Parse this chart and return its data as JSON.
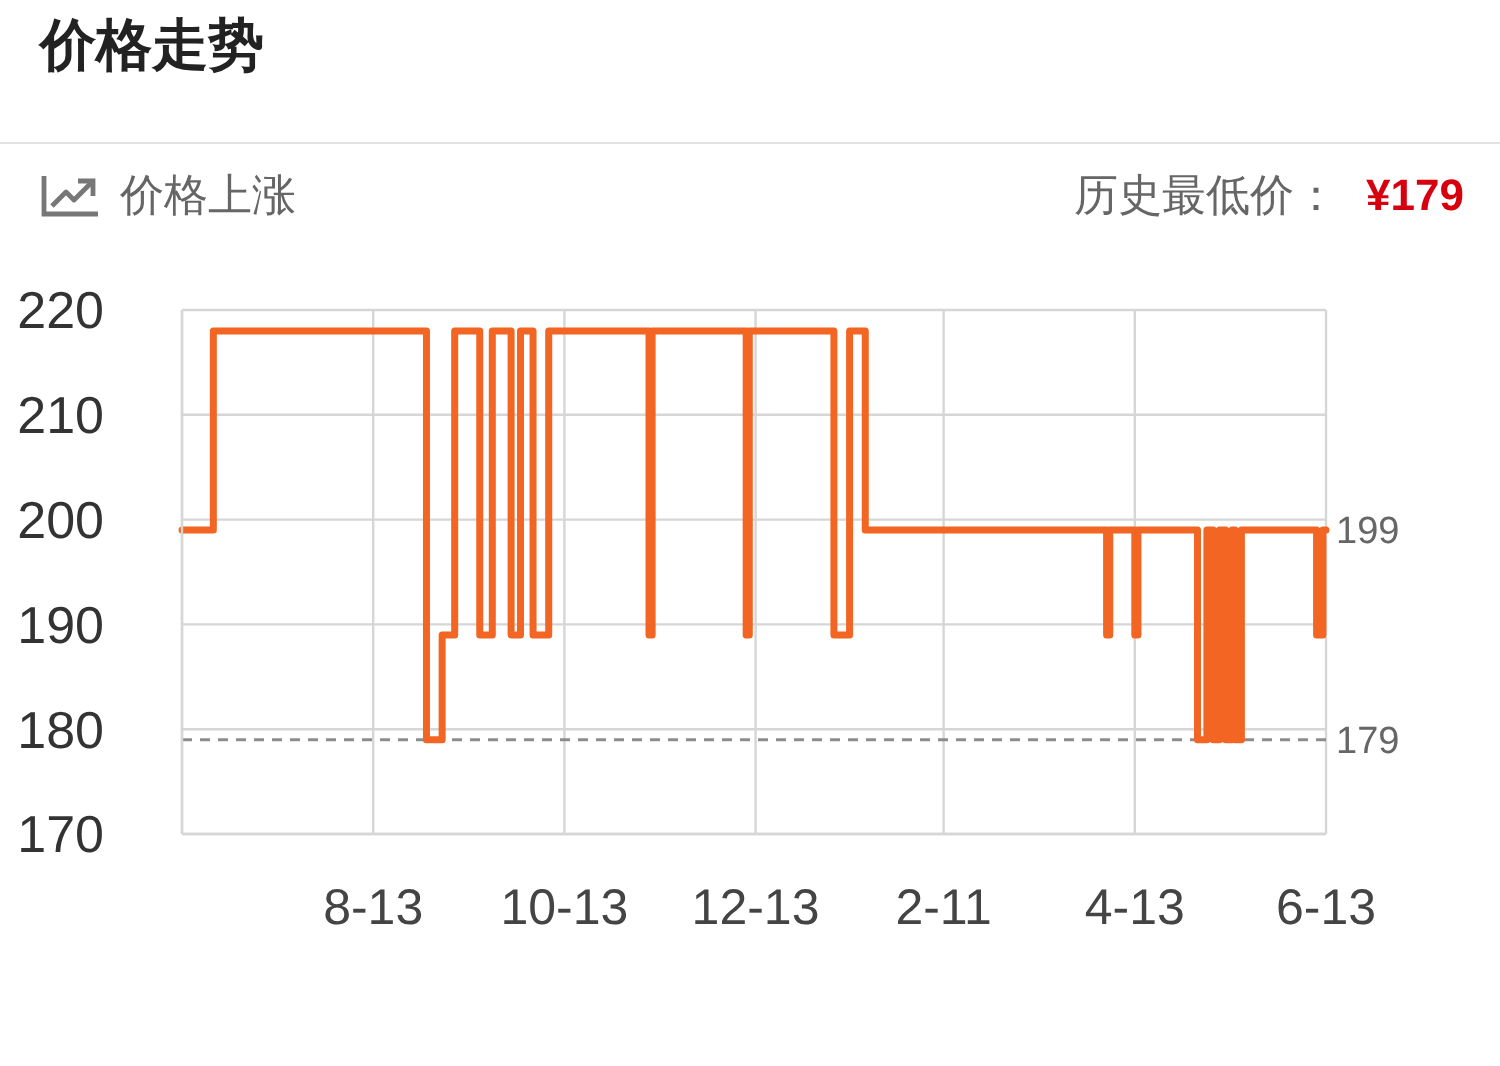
{
  "chart_data": {
    "type": "step",
    "title": "价格走势",
    "subtitle": "价格上涨",
    "annotations": [
      "历史最低价：",
      "¥179"
    ],
    "categories": [
      null,
      null,
      null,
      null,
      null,
      null,
      null,
      null,
      null,
      null,
      null,
      null,
      null,
      null,
      null,
      null,
      null,
      null,
      null,
      null,
      null,
      null,
      null,
      null,
      null,
      null,
      null,
      null,
      null,
      null,
      null,
      null,
      null,
      null,
      null,
      null,
      null,
      null,
      null,
      null,
      null,
      null,
      null,
      null,
      null,
      null,
      null,
      null,
      null,
      null,
      null,
      null,
      null,
      null,
      null,
      null,
      null,
      null,
      null,
      null,
      null,
      "8-13",
      null,
      null,
      null,
      null,
      null,
      null,
      null,
      null,
      null,
      null,
      null,
      null,
      null,
      null,
      null,
      null,
      null,
      null,
      null,
      null,
      null,
      null,
      null,
      null,
      null,
      null,
      null,
      null,
      null,
      null,
      null,
      null,
      null,
      null,
      null,
      null,
      null,
      null,
      null,
      null,
      null,
      null,
      null,
      null,
      null,
      null,
      null,
      null,
      null,
      null,
      null,
      null,
      null,
      null,
      null,
      null,
      null,
      null,
      null,
      null,
      "10-13",
      null,
      null,
      null,
      null,
      null,
      null,
      null,
      null,
      null,
      null,
      null,
      null,
      null,
      null,
      null,
      null,
      null,
      null,
      null,
      null,
      null,
      null,
      null,
      null,
      null,
      null,
      null,
      null,
      null,
      null,
      null,
      null,
      null,
      null,
      null,
      null,
      null,
      null,
      null,
      null,
      null,
      null,
      null,
      null,
      null,
      null,
      null,
      null,
      null,
      null,
      null,
      null,
      null,
      null,
      null,
      null,
      null,
      null,
      null,
      null,
      "12-13",
      null,
      null,
      null,
      null,
      null,
      null,
      null,
      null,
      null,
      null,
      null,
      null,
      null,
      null,
      null,
      null,
      null,
      null,
      null,
      null,
      null,
      null,
      null,
      null,
      null,
      null,
      null,
      null,
      null,
      null,
      null,
      null,
      null,
      null,
      null,
      null,
      null,
      null,
      null,
      null,
      null,
      null,
      null,
      null,
      null,
      null,
      null,
      null,
      null,
      null,
      null,
      null,
      null,
      null,
      null,
      null,
      null,
      null,
      null,
      "2-11",
      null,
      null,
      null,
      null,
      null,
      null,
      null,
      null,
      null,
      null,
      null,
      null,
      null,
      null,
      null,
      null,
      null,
      null,
      null,
      null,
      null,
      null,
      null,
      null,
      null,
      null,
      null,
      null,
      null,
      null,
      null,
      null,
      null,
      null,
      null,
      null,
      null,
      null,
      null,
      null,
      null,
      null,
      null,
      null,
      null,
      null,
      null,
      null,
      null,
      null,
      null,
      null,
      null,
      null,
      null,
      null,
      null,
      null,
      null,
      null,
      "4-13",
      null,
      null,
      null,
      null,
      null,
      null,
      null,
      null,
      null,
      null,
      null,
      null,
      null,
      null,
      null,
      null,
      null,
      null,
      null,
      null,
      null,
      null,
      null,
      null,
      null,
      null,
      null,
      null,
      null,
      null,
      null,
      null,
      null,
      null,
      null,
      null,
      null,
      null,
      null,
      null,
      null,
      null,
      null,
      null,
      null,
      null,
      null,
      null,
      null,
      null,
      null,
      null,
      null,
      null,
      null,
      null,
      null,
      null,
      null,
      null,
      "6-13"
    ],
    "values": [
      199,
      199,
      199,
      199,
      199,
      199,
      199,
      199,
      199,
      199,
      218,
      218,
      218,
      218,
      218,
      218,
      218,
      218,
      218,
      218,
      218,
      218,
      218,
      218,
      218,
      218,
      218,
      218,
      218,
      218,
      218,
      218,
      218,
      218,
      218,
      218,
      218,
      218,
      218,
      218,
      218,
      218,
      218,
      218,
      218,
      218,
      218,
      218,
      218,
      218,
      218,
      218,
      218,
      218,
      218,
      218,
      218,
      218,
      218,
      218,
      218,
      218,
      218,
      218,
      218,
      218,
      218,
      218,
      218,
      218,
      218,
      218,
      218,
      218,
      218,
      218,
      218,
      218,
      179,
      179,
      179,
      179,
      179,
      189,
      189,
      189,
      189,
      218,
      218,
      218,
      218,
      218,
      218,
      218,
      218,
      189,
      189,
      189,
      189,
      218,
      218,
      218,
      218,
      218,
      218,
      189,
      189,
      189,
      218,
      218,
      218,
      218,
      189,
      189,
      189,
      189,
      189,
      218,
      218,
      218,
      218,
      218,
      218,
      218,
      218,
      218,
      218,
      218,
      218,
      218,
      218,
      218,
      218,
      218,
      218,
      218,
      218,
      218,
      218,
      218,
      218,
      218,
      218,
      218,
      218,
      218,
      218,
      218,
      218,
      189,
      218,
      218,
      218,
      218,
      218,
      218,
      218,
      218,
      218,
      218,
      218,
      218,
      218,
      218,
      218,
      218,
      218,
      218,
      218,
      218,
      218,
      218,
      218,
      218,
      218,
      218,
      218,
      218,
      218,
      218,
      189,
      218,
      218,
      218,
      218,
      218,
      218,
      218,
      218,
      218,
      218,
      218,
      218,
      218,
      218,
      218,
      218,
      218,
      218,
      218,
      218,
      218,
      218,
      218,
      218,
      218,
      218,
      218,
      189,
      189,
      189,
      189,
      189,
      218,
      218,
      218,
      218,
      218,
      199,
      199,
      199,
      199,
      199,
      199,
      199,
      199,
      199,
      199,
      199,
      199,
      199,
      199,
      199,
      199,
      199,
      199,
      199,
      199,
      199,
      199,
      199,
      199,
      199,
      199,
      199,
      199,
      199,
      199,
      199,
      199,
      199,
      199,
      199,
      199,
      199,
      199,
      199,
      199,
      199,
      199,
      199,
      199,
      199,
      199,
      199,
      199,
      199,
      199,
      199,
      199,
      199,
      199,
      199,
      199,
      199,
      199,
      199,
      199,
      199,
      199,
      199,
      199,
      199,
      199,
      199,
      199,
      199,
      199,
      199,
      199,
      199,
      199,
      199,
      199,
      199,
      189,
      199,
      199,
      199,
      199,
      199,
      199,
      199,
      199,
      189,
      199,
      199,
      199,
      199,
      199,
      199,
      199,
      199,
      199,
      199,
      199,
      199,
      199,
      199,
      199,
      199,
      199,
      199,
      199,
      179,
      179,
      179,
      199,
      199,
      179,
      179,
      199,
      199,
      179,
      179,
      199,
      179,
      179,
      199,
      199,
      199,
      199,
      199,
      199,
      199,
      199,
      199,
      199,
      199,
      199,
      199,
      199,
      199,
      199,
      199,
      199,
      199,
      199,
      199,
      199,
      199,
      199,
      189,
      189,
      199,
      199
    ],
    "value_labels": [
      null,
      null,
      null,
      null,
      null,
      null,
      null,
      null,
      null,
      null,
      null,
      null,
      null,
      null,
      null,
      null,
      null,
      null,
      null,
      null,
      null,
      null,
      null,
      null,
      null,
      null,
      null,
      null,
      null,
      null,
      null,
      null,
      null,
      null,
      null,
      null,
      null,
      null,
      null,
      null,
      null,
      null,
      null,
      null,
      null,
      null,
      null,
      null,
      null,
      null,
      null,
      null,
      null,
      null,
      null,
      null,
      null,
      null,
      null,
      null,
      null,
      null,
      null,
      null,
      null,
      null,
      null,
      null,
      null,
      null,
      null,
      null,
      null,
      null,
      null,
      null,
      null,
      null,
      null,
      null,
      null,
      null,
      null,
      null,
      null,
      null,
      null,
      null,
      null,
      null,
      null,
      null,
      null,
      null,
      null,
      null,
      null,
      null,
      null,
      null,
      null,
      null,
      null,
      null,
      null,
      null,
      null,
      null,
      null,
      null,
      null,
      null,
      null,
      null,
      null,
      null,
      null,
      null,
      null,
      null,
      null,
      null,
      null,
      null,
      null,
      null,
      null,
      null,
      null,
      null,
      null,
      null,
      null,
      null,
      null,
      null,
      null,
      null,
      null,
      null,
      null,
      null,
      null,
      null,
      null,
      null,
      null,
      null,
      null,
      null,
      null,
      null,
      null,
      null,
      null,
      null,
      null,
      null,
      null,
      null,
      null,
      null,
      null,
      null,
      null,
      null,
      null,
      null,
      null,
      null,
      null,
      null,
      null,
      null,
      null,
      null,
      null,
      null,
      null,
      null,
      null,
      null,
      null,
      null,
      null,
      null,
      null,
      null,
      null,
      null,
      null,
      null,
      null,
      null,
      null,
      null,
      null,
      null,
      null,
      null,
      null,
      null,
      null,
      null,
      null,
      null,
      null,
      null,
      null,
      null,
      null,
      null,
      null,
      null,
      null,
      null,
      null,
      null,
      null,
      null,
      null,
      null,
      null,
      null,
      null,
      null,
      null,
      null,
      null,
      null,
      null,
      null,
      null,
      null,
      null,
      null,
      null,
      null,
      null,
      null,
      null,
      null,
      null,
      null,
      null,
      null,
      null,
      null,
      null,
      null,
      null,
      null,
      null,
      null,
      null,
      null,
      null,
      null,
      null,
      null,
      null,
      null,
      null,
      null,
      null,
      null,
      null,
      null,
      null,
      null,
      null,
      null,
      null,
      null,
      null,
      null,
      null,
      null,
      null,
      null,
      null,
      null,
      null,
      null,
      null,
      null,
      null,
      null,
      null,
      null,
      null,
      null,
      null,
      null,
      null,
      null,
      null,
      null,
      null,
      null,
      null,
      null,
      null,
      null,
      null,
      null,
      null,
      null,
      null,
      null,
      null,
      null,
      null,
      null,
      null,
      null,
      null,
      null,
      null,
      null,
      null,
      null,
      null,
      null,
      null,
      null,
      null,
      null,
      null,
      null,
      null,
      null,
      null,
      null,
      null,
      null,
      null,
      null,
      null,
      null,
      null,
      null,
      null,
      null,
      null,
      null,
      null,
      null,
      null,
      null,
      null,
      null,
      null,
      null,
      null,
      null,
      null,
      null,
      null,
      null,
      null,
      null,
      null,
      null,
      null,
      "199"
    ],
    "color": "#f26522",
    "ylim": [
      170,
      220
    ],
    "yticks": [
      170,
      180,
      190,
      200,
      210,
      220
    ],
    "grid": true,
    "ref_lines": [
      {
        "axis": "y",
        "value": 179,
        "label": "179",
        "color": "#8c8c8c",
        "line_style": "dashed"
      }
    ]
  }
}
